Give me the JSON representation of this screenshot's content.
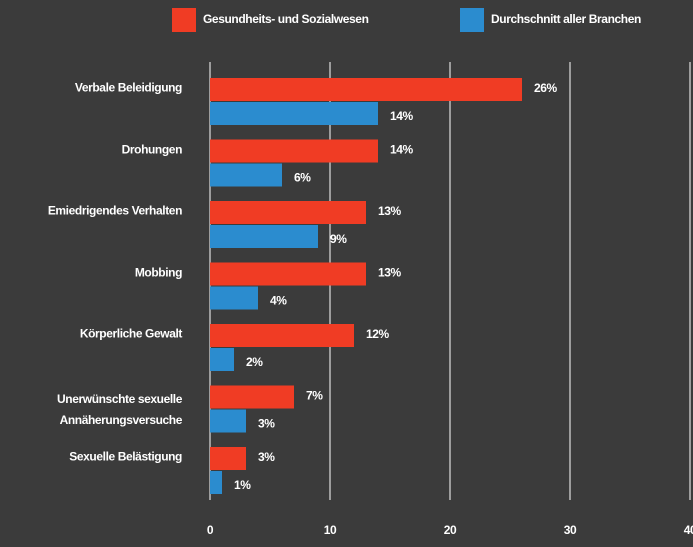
{
  "chart_data": {
    "type": "barh",
    "categories": [
      "Verbale Beleidigung",
      "Drohungen",
      "Emiedrigendes Verhalten",
      "Mobbing",
      "Körperliche Gewalt",
      "Unerwünschte sexuelle\nAnnäherungsversuche",
      "Sexuelle Belästigung"
    ],
    "series": [
      {
        "name": "Gesundheits- und Sozialwesen",
        "color": "#f03c24",
        "values": [
          26,
          14,
          13,
          13,
          12,
          7,
          3
        ],
        "value_labels": [
          "26%",
          "14%",
          "13%",
          "13%",
          "12%",
          "7%",
          "3%"
        ]
      },
      {
        "name": "Durchschnitt aller Branchen",
        "color": "#2b8ccf",
        "values": [
          14,
          6,
          9,
          4,
          2,
          3,
          1
        ],
        "value_labels": [
          "14%",
          "6%",
          "9%",
          "4%",
          "2%",
          "3%",
          "1%"
        ]
      }
    ],
    "xlim": [
      0,
      40
    ],
    "xticks": [
      0,
      10,
      20,
      30,
      40
    ],
    "grid": true,
    "legend": "top"
  }
}
